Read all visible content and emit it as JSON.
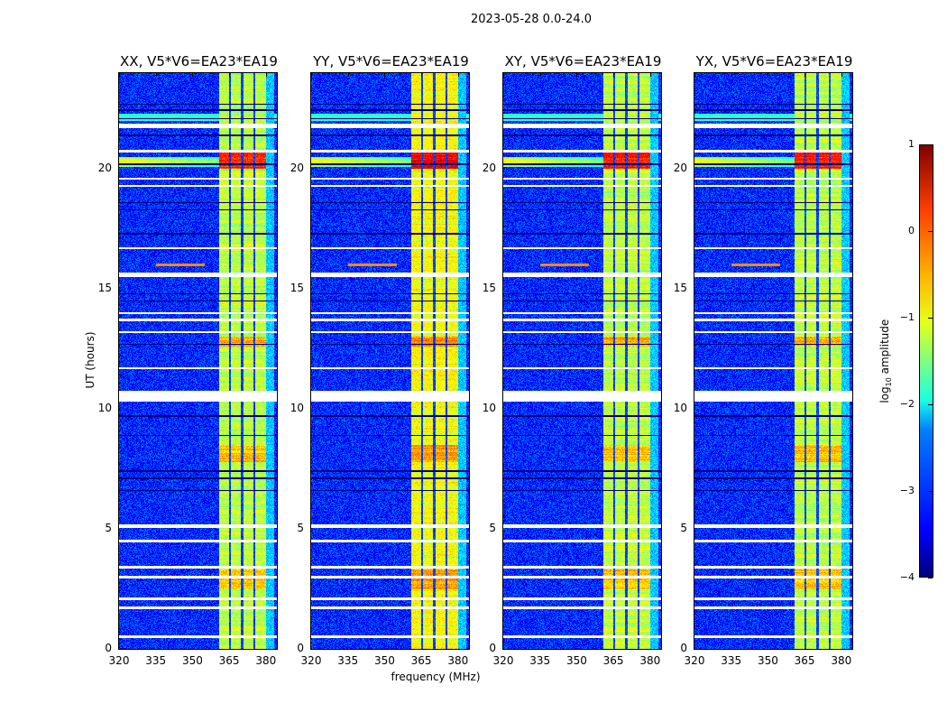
{
  "chart_data": {
    "type": "heatmap",
    "title": "2023-05-28 0.0-24.0",
    "xlabel": "frequency (MHz)",
    "ylabel": "UT (hours)",
    "xlim": [
      320,
      384.5
    ],
    "ylim": [
      0,
      24
    ],
    "xticks": [
      "320",
      "335",
      "350",
      "365",
      "380"
    ],
    "xtick_values": [
      320,
      335,
      350,
      365,
      380
    ],
    "yticks": [
      "0",
      "5",
      "10",
      "15",
      "20"
    ],
    "ytick_values": [
      0,
      5,
      10,
      15,
      20
    ],
    "panels": [
      {
        "title": "XX, V5*V6=EA23*EA19",
        "band_boost": 0
      },
      {
        "title": "YY, V5*V6=EA23*EA19",
        "band_boost": 0.3
      },
      {
        "title": "XY, V5*V6=EA23*EA19",
        "band_boost": 0
      },
      {
        "title": "YX, V5*V6=EA23*EA19",
        "band_boost": 0
      }
    ],
    "background_log_amplitude": -3.2,
    "band_mhz": [
      361,
      380
    ],
    "band_log_amplitude": -1.2,
    "flagged_hours": [
      [
        21.7,
        21.9
      ],
      [
        20.7,
        20.8
      ],
      [
        19.55,
        19.65
      ],
      [
        19.25,
        19.35
      ],
      [
        16.65,
        16.75
      ],
      [
        15.5,
        15.7
      ],
      [
        13.95,
        14.05
      ],
      [
        13.65,
        13.75
      ],
      [
        13.15,
        13.25
      ],
      [
        11.65,
        11.75
      ],
      [
        10.3,
        10.75
      ],
      [
        5.05,
        5.2
      ],
      [
        4.45,
        4.55
      ],
      [
        3.35,
        3.45
      ],
      [
        2.95,
        3.05
      ],
      [
        2.05,
        2.15
      ],
      [
        1.65,
        1.75
      ],
      [
        0.45,
        0.55
      ]
    ],
    "dropout_hours": [
      22.7,
      22.45,
      22.1,
      21.4,
      20.2,
      18.6,
      18.3,
      17.3,
      14.8,
      14.5,
      12.7,
      9.7,
      8.9,
      7.4,
      7.1,
      6.6
    ],
    "strong_rfi": [
      {
        "hours": [
          20.0,
          20.8
        ],
        "level": 0.2
      },
      {
        "hours": [
          12.6,
          13.0
        ],
        "level": -0.5
      },
      {
        "hours": [
          2.5,
          3.3
        ],
        "level": -0.6
      },
      {
        "hours": [
          7.8,
          8.5
        ],
        "level": -0.6
      }
    ],
    "colorbar": {
      "label": "log10 amplitude",
      "label_main": "log",
      "label_sub": "10",
      "label_rest": " amplitude",
      "range": [
        -4,
        1
      ],
      "ticks": [
        "1",
        "0",
        "−1",
        "−2",
        "−3",
        "−4"
      ],
      "tick_values": [
        1,
        0,
        -1,
        -2,
        -3,
        -4
      ],
      "colormap": "jet"
    }
  }
}
